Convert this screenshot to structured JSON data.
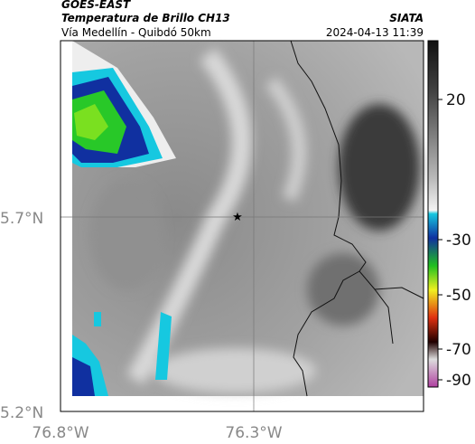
{
  "header": {
    "source": "GOES-EAST",
    "product": "Temperatura de Brillo CH13",
    "region": "Vía Medellín - Quibdó 50km",
    "agency": "SIATA",
    "timestamp": "2024-04-13 11:39"
  },
  "map": {
    "lat_labels": [
      "5.7°N",
      "5.2°N"
    ],
    "lon_labels": [
      "76.8°W",
      "76.3°W"
    ]
  },
  "colorbar": {
    "ticks": [
      "20",
      "-30",
      "-50",
      "-70",
      "-90"
    ]
  }
}
